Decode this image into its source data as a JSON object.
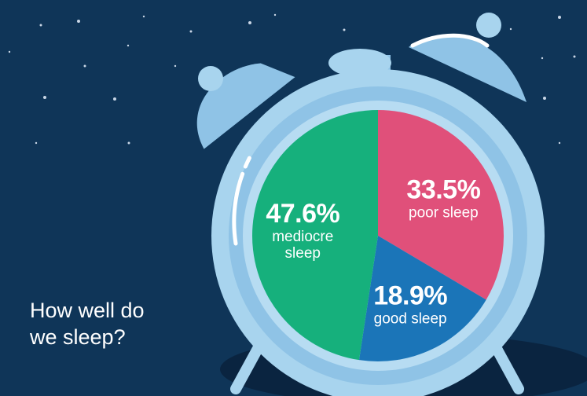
{
  "chart_data": {
    "type": "pie",
    "title": "How well do we sleep?",
    "categories": [
      "poor sleep",
      "good sleep",
      "mediocre sleep"
    ],
    "values": [
      33.5,
      18.9,
      47.6
    ],
    "value_labels": [
      "33.5%",
      "18.9%",
      "47.6%"
    ],
    "colors": [
      "#e0507a",
      "#1b75b8",
      "#16b07c"
    ]
  }
}
